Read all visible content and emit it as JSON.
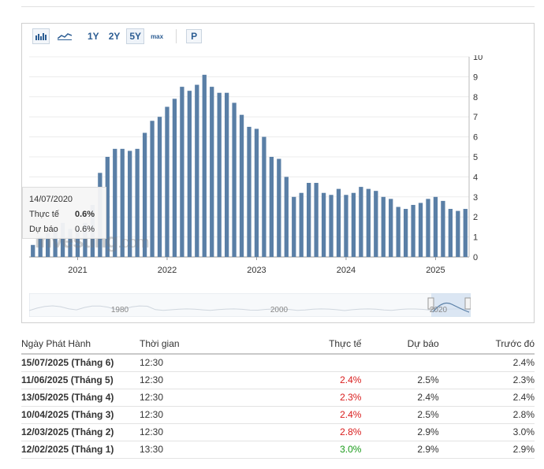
{
  "toolbar": {
    "bar_icon": "bar-chart-icon",
    "line_icon": "line-chart-icon",
    "ranges": [
      "1Y",
      "2Y",
      "5Y",
      "max"
    ],
    "active_range": "5Y",
    "p_button": "P"
  },
  "tooltip": {
    "date": "14/07/2020",
    "actual_label": "Thực tế",
    "actual_value": "0.6%",
    "forecast_label": "Dự báo",
    "forecast_value": "0.6%"
  },
  "watermark": {
    "brand": "Investing",
    "suffix": ".com"
  },
  "chart_data": {
    "type": "bar",
    "x_start": "2020-07",
    "x_interval": "month",
    "values": [
      0.6,
      1.0,
      1.2,
      1.4,
      1.7,
      1.4,
      1.4,
      1.7,
      2.6,
      4.2,
      5.0,
      5.4,
      5.4,
      5.3,
      5.4,
      6.2,
      6.8,
      7.0,
      7.5,
      7.9,
      8.5,
      8.3,
      8.6,
      9.1,
      8.5,
      8.2,
      8.2,
      7.7,
      7.1,
      6.5,
      6.4,
      6.0,
      5.0,
      4.9,
      4.0,
      3.0,
      3.2,
      3.7,
      3.7,
      3.2,
      3.1,
      3.4,
      3.1,
      3.2,
      3.5,
      3.4,
      3.3,
      3.0,
      2.9,
      2.5,
      2.4,
      2.6,
      2.7,
      2.9,
      3.0,
      2.8,
      2.4,
      2.3,
      2.4
    ],
    "ylim": [
      0,
      10
    ],
    "yticks": [
      "0",
      "1",
      "2",
      "3",
      "4",
      "5",
      "6",
      "7",
      "8",
      "9",
      "10"
    ],
    "xticks": [
      "2021",
      "2022",
      "2023",
      "2024",
      "2025"
    ],
    "navigator_labels": [
      "1980",
      "2000",
      "2020"
    ],
    "grid": true
  },
  "table": {
    "headers": {
      "release_date": "Ngày Phát Hành",
      "time": "Thời gian",
      "actual": "Thực tế",
      "forecast": "Dự báo",
      "previous": "Trước đó"
    },
    "rows": [
      {
        "date": "15/07/2025 (Tháng 6)",
        "time": "12:30",
        "actual": "",
        "actual_color": "",
        "forecast": "",
        "previous": "2.4%"
      },
      {
        "date": "11/06/2025 (Tháng 5)",
        "time": "12:30",
        "actual": "2.4%",
        "actual_color": "red",
        "forecast": "2.5%",
        "previous": "2.3%"
      },
      {
        "date": "13/05/2025 (Tháng 4)",
        "time": "12:30",
        "actual": "2.3%",
        "actual_color": "red",
        "forecast": "2.4%",
        "previous": "2.4%"
      },
      {
        "date": "10/04/2025 (Tháng 3)",
        "time": "12:30",
        "actual": "2.4%",
        "actual_color": "red",
        "forecast": "2.5%",
        "previous": "2.8%"
      },
      {
        "date": "12/03/2025 (Tháng 2)",
        "time": "12:30",
        "actual": "2.8%",
        "actual_color": "red",
        "forecast": "2.9%",
        "previous": "3.0%"
      },
      {
        "date": "12/02/2025 (Tháng 1)",
        "time": "13:30",
        "actual": "3.0%",
        "actual_color": "green",
        "forecast": "2.9%",
        "previous": "2.9%"
      }
    ]
  },
  "colors": {
    "bar": "#5a7fa6",
    "red": "#d91c1c",
    "green": "#1a9b1a",
    "link": "#2c5d93"
  }
}
